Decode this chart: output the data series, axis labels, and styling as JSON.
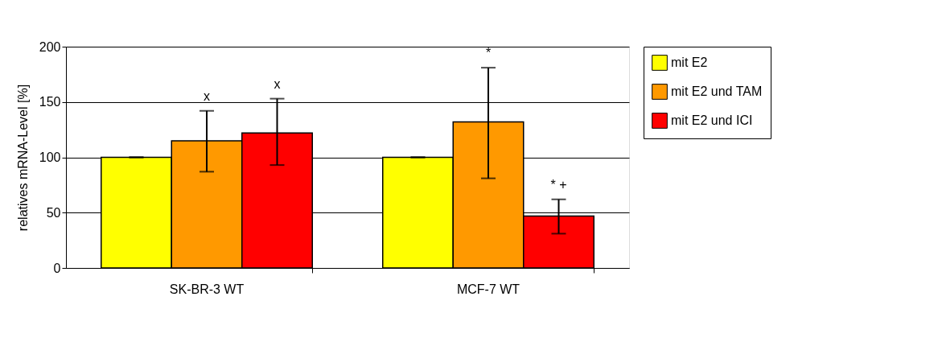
{
  "chart_data": {
    "type": "bar",
    "ylabel": "relatives mRNA-Level [%]",
    "categories": [
      "SK-BR-3 WT",
      "MCF-7 WT"
    ],
    "series": [
      {
        "name": "mit E2",
        "color": "#ffff00",
        "values": [
          100,
          100
        ],
        "errors": [
          0,
          0
        ]
      },
      {
        "name": "mit E2 und TAM",
        "color": "#ff9900",
        "values": [
          115,
          132
        ],
        "errors": [
          [
            87,
            142
          ],
          [
            81,
            181
          ]
        ]
      },
      {
        "name": "mit E2 und ICI",
        "color": "#ff0000",
        "values": [
          122,
          47
        ],
        "errors": [
          [
            93,
            153
          ],
          [
            31,
            62
          ]
        ]
      }
    ],
    "annotations": [
      "x",
      "x",
      "*",
      "* +"
    ],
    "ylim": [
      0,
      200
    ],
    "yticks": [
      0,
      50,
      100,
      150,
      200
    ],
    "grid": "y",
    "legend": "right"
  }
}
